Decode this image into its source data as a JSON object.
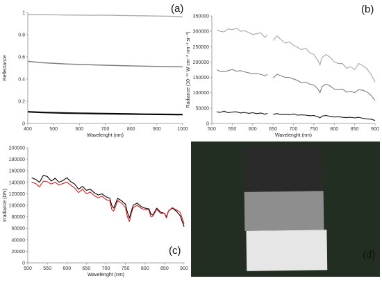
{
  "chart_data": [
    {
      "panel": "(a)",
      "type": "line",
      "xlabel": "Wavelenght (nm)",
      "ylabel": "Reflectance",
      "xlim": [
        400,
        1000
      ],
      "ylim": [
        0,
        1
      ],
      "xticks": [
        400,
        500,
        600,
        700,
        800,
        900,
        1000
      ],
      "yticks": [
        0,
        0.2,
        0.4,
        0.6,
        0.8,
        1
      ],
      "ytick_labels": [
        "0",
        "0.2",
        "0.4",
        "0.6",
        "0.8",
        "1"
      ],
      "x": [
        400,
        450,
        500,
        550,
        600,
        650,
        700,
        750,
        800,
        850,
        900,
        950,
        1000
      ],
      "series": [
        {
          "color": "#a6a6a6",
          "width": 1.3,
          "values": [
            0.98,
            0.982,
            0.979,
            0.977,
            0.976,
            0.975,
            0.976,
            0.973,
            0.971,
            0.97,
            0.968,
            0.966,
            0.961
          ]
        },
        {
          "color": "#7f7f7f",
          "width": 1.5,
          "values": [
            0.56,
            0.548,
            0.542,
            0.536,
            0.532,
            0.528,
            0.525,
            0.522,
            0.519,
            0.516,
            0.514,
            0.512,
            0.51
          ]
        },
        {
          "color": "#0a0a0a",
          "width": 2.2,
          "values": [
            0.105,
            0.1,
            0.097,
            0.094,
            0.092,
            0.09,
            0.088,
            0.087,
            0.085,
            0.083,
            0.082,
            0.081,
            0.08
          ]
        }
      ]
    },
    {
      "panel": "(b)",
      "type": "line",
      "xlabel": "Wavelenght (nm)",
      "ylabel": "Radiance (10⁻¹⁰ W cm⁻² nm⁻¹ sr⁻¹)",
      "xlim": [
        500,
        900
      ],
      "ylim": [
        0,
        350000
      ],
      "xticks": [
        500,
        550,
        600,
        650,
        700,
        750,
        800,
        850,
        900
      ],
      "yticks": [
        0,
        50000,
        100000,
        150000,
        200000,
        250000,
        300000,
        350000
      ],
      "ytick_labels": [
        "0",
        "50000",
        "100000",
        "150000",
        "200000",
        "250000",
        "300000",
        "350000"
      ],
      "segments": [
        {
          "x": [
            512,
            520,
            530,
            540,
            550,
            560,
            570,
            580,
            590,
            600,
            610,
            620,
            630,
            636
          ],
          "series": [
            {
              "color": "#a6a6a6",
              "values": [
                305000,
                300000,
                298000,
                308000,
                305000,
                310000,
                300000,
                302000,
                296000,
                290000,
                292000,
                295000,
                280000,
                288000
              ]
            },
            {
              "color": "#7f7f7f",
              "values": [
                175000,
                170000,
                168000,
                172000,
                176000,
                170000,
                172000,
                168000,
                165000,
                162000,
                163000,
                160000,
                155000,
                160000
              ]
            },
            {
              "color": "#111111",
              "values": [
                38000,
                36000,
                40000,
                35000,
                37000,
                38000,
                34000,
                36000,
                33000,
                35000,
                32000,
                34000,
                30000,
                33000
              ]
            }
          ]
        },
        {
          "x": [
            650,
            660,
            670,
            680,
            690,
            700,
            710,
            720,
            730,
            740,
            750,
            760,
            765,
            770,
            780,
            790,
            800,
            810,
            820,
            830,
            840,
            850,
            860,
            870,
            880,
            890,
            900
          ],
          "series": [
            {
              "color": "#a6a6a6",
              "values": [
                270000,
                285000,
                272000,
                262000,
                265000,
                255000,
                248000,
                240000,
                245000,
                230000,
                225000,
                205000,
                190000,
                215000,
                225000,
                215000,
                200000,
                195000,
                195000,
                180000,
                185000,
                175000,
                195000,
                188000,
                178000,
                160000,
                135000
              ]
            },
            {
              "color": "#7f7f7f",
              "values": [
                148000,
                160000,
                155000,
                150000,
                150000,
                145000,
                140000,
                132000,
                135000,
                128000,
                125000,
                112000,
                100000,
                120000,
                128000,
                122000,
                112000,
                110000,
                112000,
                102000,
                105000,
                100000,
                110000,
                108000,
                103000,
                92000,
                75000
              ]
            },
            {
              "color": "#111111",
              "values": [
                30000,
                32000,
                29000,
                30000,
                28000,
                31000,
                27000,
                28000,
                27000,
                25000,
                26000,
                22000,
                18000,
                24000,
                26000,
                23000,
                21000,
                22000,
                20000,
                19000,
                20000,
                18000,
                20000,
                17000,
                15000,
                14000,
                10000
              ]
            }
          ]
        }
      ]
    },
    {
      "panel": "(c)",
      "type": "line",
      "xlabel": "Wavelenght (nm)",
      "ylabel": "Irradiance (DN)",
      "xlim": [
        500,
        900
      ],
      "ylim": [
        0,
        200000
      ],
      "xticks": [
        500,
        550,
        600,
        650,
        700,
        750,
        800,
        850,
        900
      ],
      "yticks": [
        0,
        20000,
        40000,
        60000,
        80000,
        100000,
        120000,
        140000,
        160000,
        180000,
        200000
      ],
      "ytick_labels": [
        "0",
        "20000",
        "40000",
        "60000",
        "80000",
        "100000",
        "120000",
        "140000",
        "160000",
        "180000",
        "200000"
      ],
      "x": [
        510,
        520,
        530,
        540,
        550,
        560,
        570,
        580,
        590,
        600,
        610,
        620,
        630,
        640,
        650,
        660,
        670,
        680,
        690,
        700,
        710,
        715,
        720,
        730,
        740,
        750,
        755,
        760,
        765,
        770,
        780,
        790,
        800,
        810,
        815,
        820,
        830,
        840,
        850,
        855,
        860,
        870,
        880,
        890,
        900
      ],
      "series": [
        {
          "color": "#000000",
          "values": [
            148000,
            145000,
            140000,
            152000,
            150000,
            142000,
            147000,
            140000,
            143000,
            148000,
            141000,
            137000,
            128000,
            133000,
            126000,
            128000,
            122000,
            118000,
            120000,
            115000,
            112000,
            100000,
            95000,
            112000,
            108000,
            102000,
            88000,
            78000,
            90000,
            100000,
            104000,
            98000,
            95000,
            94000,
            85000,
            83000,
            95000,
            88000,
            86000,
            80000,
            90000,
            95000,
            90000,
            82000,
            63000
          ]
        },
        {
          "color": "#d61a1a",
          "values": [
            140000,
            138000,
            132000,
            142000,
            141000,
            137000,
            140000,
            135000,
            138000,
            140000,
            135000,
            130000,
            122000,
            128000,
            120000,
            123000,
            117000,
            113000,
            116000,
            110000,
            108000,
            93000,
            90000,
            108000,
            104000,
            96000,
            80000,
            72000,
            86000,
            96000,
            100000,
            95000,
            92000,
            92000,
            80000,
            81000,
            93000,
            86000,
            86000,
            78000,
            90000,
            96000,
            92000,
            88000,
            68000
          ]
        }
      ]
    }
  ],
  "photo": {
    "label": "(d)",
    "background": "#1f2a1f",
    "panel_colors": [
      "#2a2a2a",
      "#8e8e8e",
      "#e6e6e6"
    ]
  }
}
